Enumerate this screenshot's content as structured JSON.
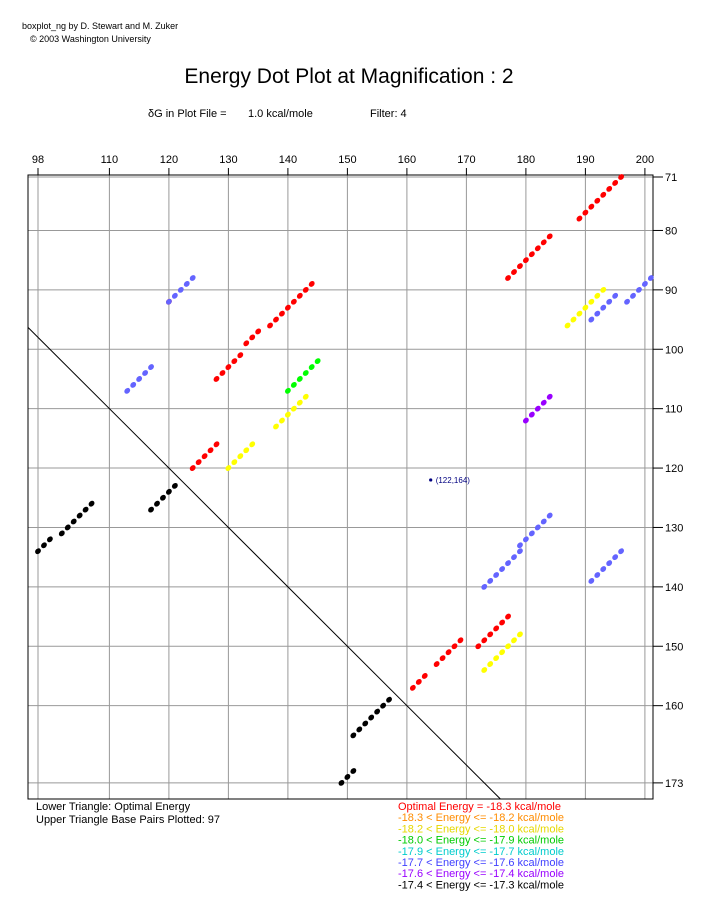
{
  "header": {
    "credit_line1": "boxplot_ng by D. Stewart and M. Zuker",
    "credit_line2": "© 2003  Washington University",
    "title": "Energy Dot Plot at Magnification : 2",
    "dg_label": "δG in Plot File =",
    "dg_value": "1.0 kcal/mole",
    "filter": "Filter: 4"
  },
  "chart_data": {
    "type": "scatter",
    "x_ticks": [
      98,
      110,
      120,
      130,
      140,
      150,
      160,
      170,
      180,
      190,
      200
    ],
    "y_ticks": [
      71,
      80,
      90,
      100,
      110,
      120,
      130,
      140,
      150,
      160,
      173
    ],
    "xlim": [
      97,
      200
    ],
    "ylim": [
      71,
      173
    ],
    "grid": true,
    "diagonal": true,
    "point_annotation": {
      "x": 164,
      "y": 122,
      "label": "(122,164)",
      "color": "#000080"
    },
    "series": [
      {
        "color": "#ff0000",
        "diagonals": [
          [
            189,
            78,
            7
          ],
          [
            177,
            88,
            7
          ],
          [
            120,
            92,
            0
          ],
          [
            128,
            105,
            4
          ],
          [
            133,
            99,
            2
          ],
          [
            137,
            96,
            7
          ],
          [
            161,
            157,
            2
          ],
          [
            165,
            153,
            4
          ],
          [
            172,
            150,
            5
          ],
          [
            124,
            120,
            4
          ]
        ]
      },
      {
        "color": "#ffff00",
        "diagonals": [
          [
            187,
            96,
            6
          ],
          [
            138,
            113,
            5
          ],
          [
            130,
            120,
            4
          ],
          [
            173,
            154,
            6
          ]
        ]
      },
      {
        "color": "#00ff00",
        "diagonals": [
          [
            140,
            107,
            5
          ]
        ]
      },
      {
        "color": "#6464ff",
        "diagonals": [
          [
            120,
            92,
            4
          ],
          [
            113,
            107,
            4
          ],
          [
            191,
            95,
            4
          ],
          [
            197,
            92,
            5
          ],
          [
            173,
            140,
            6
          ],
          [
            179,
            133,
            5
          ],
          [
            191,
            139,
            5
          ]
        ]
      },
      {
        "color": "#9900ff",
        "diagonals": [
          [
            180,
            112,
            4
          ]
        ]
      },
      {
        "color": "#000000",
        "diagonals": [
          [
            98,
            134,
            2
          ],
          [
            102,
            131,
            5
          ],
          [
            117,
            127,
            4
          ],
          [
            151,
            165,
            6
          ],
          [
            149,
            173,
            2
          ]
        ]
      }
    ],
    "legend_left": [
      "Lower Triangle: Optimal Energy",
      "Upper Triangle Base Pairs Plotted: 97"
    ],
    "legend_energy": [
      {
        "text": "Optimal Energy  =   -18.3  kcal/mole",
        "color": "#ff0000"
      },
      {
        "text": "-18.3 < Energy <=  -18.2  kcal/mole",
        "color": "#ff8c00"
      },
      {
        "text": "-18.2 < Energy <=  -18.0  kcal/mole",
        "color": "#e6d800"
      },
      {
        "text": "-18.0 < Energy <=  -17.9  kcal/mole",
        "color": "#00cc00"
      },
      {
        "text": "-17.9 < Energy <=  -17.7  kcal/mole",
        "color": "#00cccc"
      },
      {
        "text": "-17.7 < Energy <=  -17.6  kcal/mole",
        "color": "#4040ff"
      },
      {
        "text": "-17.6 < Energy <=  -17.4  kcal/mole",
        "color": "#9900ff"
      },
      {
        "text": "-17.4 < Energy <=  -17.3  kcal/mole",
        "color": "#000000"
      }
    ]
  }
}
